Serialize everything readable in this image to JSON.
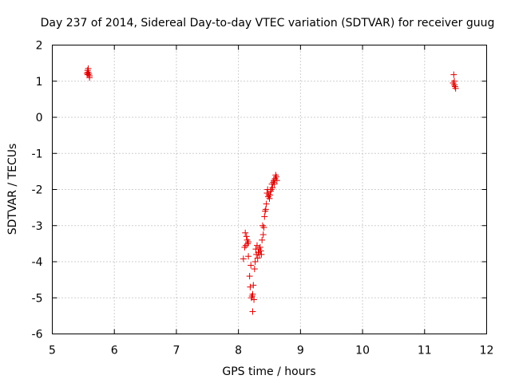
{
  "chart_data": {
    "type": "scatter",
    "title": "Day 237 of 2014, Sidereal Day-to-day VTEC variation (SDTVAR) for receiver guug",
    "xlabel": "GPS time / hours",
    "ylabel": "SDTVAR / TECUs",
    "xlim": [
      5,
      12
    ],
    "ylim": [
      -6,
      2
    ],
    "grid": true,
    "marker": "plus",
    "color": "#e00000",
    "xticks": [
      "5",
      "6",
      "7",
      "8",
      "9",
      "10",
      "11",
      "12"
    ],
    "yticks": [
      "2",
      "1",
      "0",
      "-1",
      "-2",
      "-3",
      "-4",
      "-5",
      "-6"
    ],
    "series": [
      {
        "name": "SDTVAR",
        "x": [
          5.56,
          5.57,
          5.57,
          5.58,
          5.58,
          5.59,
          5.6,
          5.6,
          8.08,
          8.1,
          8.11,
          8.12,
          8.13,
          8.14,
          8.15,
          8.16,
          8.16,
          8.18,
          8.19,
          8.2,
          8.21,
          8.22,
          8.23,
          8.23,
          8.24,
          8.25,
          8.26,
          8.27,
          8.28,
          8.29,
          8.3,
          8.31,
          8.32,
          8.33,
          8.34,
          8.35,
          8.36,
          8.37,
          8.38,
          8.39,
          8.4,
          8.41,
          8.42,
          8.43,
          8.44,
          8.45,
          8.46,
          8.47,
          8.48,
          8.49,
          8.5,
          8.51,
          8.52,
          8.53,
          8.54,
          8.55,
          8.56,
          8.57,
          8.58,
          8.59,
          8.6,
          8.61,
          8.62,
          11.46,
          11.47,
          11.48,
          11.48,
          11.49,
          11.5
        ],
        "y": [
          1.22,
          1.3,
          1.18,
          1.35,
          1.25,
          1.2,
          1.15,
          1.1,
          -3.92,
          -3.6,
          -3.2,
          -3.55,
          -3.3,
          -3.4,
          -3.5,
          -3.85,
          -3.45,
          -4.4,
          -4.7,
          -4.1,
          -5.0,
          -4.95,
          -4.9,
          -5.38,
          -4.65,
          -5.05,
          -4.2,
          -4.0,
          -3.65,
          -3.8,
          -3.55,
          -3.9,
          -3.75,
          -3.65,
          -3.8,
          -3.6,
          -3.7,
          -3.8,
          -3.4,
          -3.0,
          -3.25,
          -3.05,
          -2.75,
          -2.6,
          -2.55,
          -2.4,
          -2.1,
          -2.0,
          -2.2,
          -2.15,
          -2.25,
          -2.15,
          -2.05,
          -2.0,
          -1.85,
          -1.95,
          -1.8,
          -1.75,
          -1.85,
          -1.7,
          -1.6,
          -1.65,
          -1.75,
          0.95,
          1.18,
          1.0,
          0.9,
          0.85,
          0.8
        ]
      }
    ]
  }
}
